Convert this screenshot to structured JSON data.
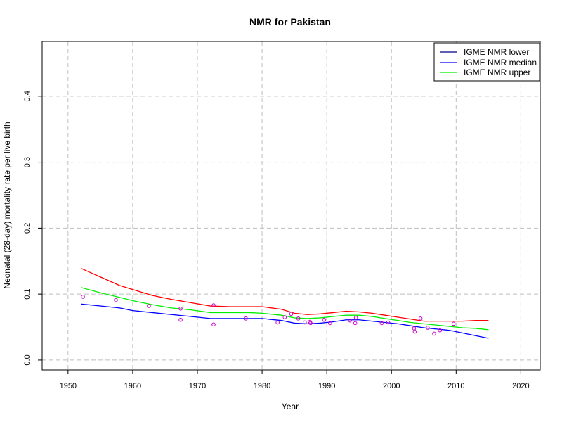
{
  "chart_data": {
    "type": "line",
    "title": "NMR for Pakistan",
    "xlabel": "Year",
    "ylabel": "Neonatal (28-day) mortality rate per live birth",
    "xlim": [
      1946,
      2023
    ],
    "ylim": [
      -0.015,
      0.483
    ],
    "x_ticks": [
      1950,
      1960,
      1970,
      1980,
      1990,
      2000,
      2010,
      2020
    ],
    "y_ticks": [
      0.0,
      0.1,
      0.2,
      0.3,
      0.4
    ],
    "y_tick_labels": [
      "0.0",
      "0.1",
      "0.2",
      "0.3",
      "0.4"
    ],
    "grid": true,
    "legend_position": "top-right",
    "legend": [
      {
        "label": "IGME NMR lower",
        "color": "#000080"
      },
      {
        "label": "IGME NMR median",
        "color": "#0000ff"
      },
      {
        "label": "IGME NMR upper",
        "color": "#00ee00"
      }
    ],
    "series": [
      {
        "color": "#ff0000",
        "x": [
          1952,
          1955,
          1958,
          1960,
          1963,
          1966,
          1969,
          1972,
          1975,
          1978,
          1980,
          1983,
          1985,
          1987,
          1989,
          1991,
          1993,
          1995,
          1997,
          1999,
          2001,
          2003,
          2005,
          2007,
          2009,
          2011,
          2013,
          2015
        ],
        "y": [
          0.139,
          0.126,
          0.113,
          0.107,
          0.098,
          0.092,
          0.087,
          0.082,
          0.081,
          0.081,
          0.081,
          0.077,
          0.071,
          0.069,
          0.07,
          0.072,
          0.074,
          0.073,
          0.071,
          0.068,
          0.065,
          0.062,
          0.059,
          0.059,
          0.059,
          0.059,
          0.06,
          0.06
        ]
      },
      {
        "color": "#00ee00",
        "x": [
          1952,
          1955,
          1958,
          1960,
          1963,
          1966,
          1969,
          1972,
          1975,
          1978,
          1980,
          1983,
          1985,
          1987,
          1989,
          1991,
          1993,
          1995,
          1997,
          1999,
          2001,
          2003,
          2005,
          2007,
          2009,
          2011,
          2013,
          2015
        ],
        "y": [
          0.11,
          0.102,
          0.095,
          0.09,
          0.084,
          0.079,
          0.076,
          0.072,
          0.072,
          0.072,
          0.071,
          0.068,
          0.064,
          0.063,
          0.064,
          0.066,
          0.068,
          0.068,
          0.066,
          0.063,
          0.06,
          0.057,
          0.055,
          0.053,
          0.051,
          0.049,
          0.048,
          0.046
        ]
      },
      {
        "color": "#0000ff",
        "x": [
          1952,
          1955,
          1958,
          1960,
          1963,
          1966,
          1969,
          1972,
          1975,
          1978,
          1980,
          1983,
          1985,
          1987,
          1989,
          1991,
          1993,
          1995,
          1997,
          1999,
          2001,
          2003,
          2005,
          2007,
          2009,
          2011,
          2013,
          2015
        ],
        "y": [
          0.085,
          0.082,
          0.079,
          0.075,
          0.072,
          0.069,
          0.066,
          0.063,
          0.063,
          0.063,
          0.063,
          0.06,
          0.056,
          0.055,
          0.056,
          0.058,
          0.061,
          0.061,
          0.059,
          0.057,
          0.055,
          0.052,
          0.049,
          0.047,
          0.045,
          0.041,
          0.037,
          0.033
        ]
      }
    ],
    "points": {
      "color": "#cc00cc",
      "x": [
        1952.3,
        1957.4,
        1962.5,
        1967.4,
        1967.4,
        1972.5,
        1972.5,
        1977.5,
        1982.4,
        1983.5,
        1984.5,
        1985.6,
        1986.6,
        1987.4,
        1987.5,
        1989.6,
        1990.5,
        1993.6,
        1994.4,
        1994.5,
        1998.5,
        1999.5,
        2003.5,
        2003.6,
        2004.5,
        2005.6,
        2006.6,
        2007.5,
        2009.6
      ],
      "y": [
        0.096,
        0.091,
        0.082,
        0.078,
        0.061,
        0.083,
        0.054,
        0.063,
        0.057,
        0.065,
        0.07,
        0.063,
        0.057,
        0.058,
        0.056,
        0.061,
        0.056,
        0.06,
        0.056,
        0.064,
        0.056,
        0.057,
        0.048,
        0.043,
        0.063,
        0.049,
        0.04,
        0.045,
        0.055
      ]
    }
  }
}
